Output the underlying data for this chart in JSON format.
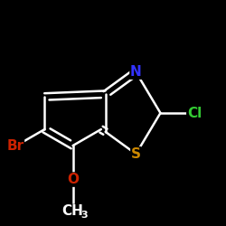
{
  "background_color": "#000000",
  "atom_colors": {
    "C": "#ffffff",
    "N": "#3333ff",
    "S": "#cc8800",
    "Br": "#cc2200",
    "Cl": "#33cc33",
    "O": "#cc2200"
  },
  "bond_color": "#ffffff",
  "bond_lw": 1.8,
  "font_size": 11,
  "font_size_sub": 8,
  "xlim": [
    -2.8,
    3.2
  ],
  "ylim": [
    -2.5,
    2.5
  ],
  "figsize": [
    2.5,
    2.5
  ],
  "dpi": 100
}
